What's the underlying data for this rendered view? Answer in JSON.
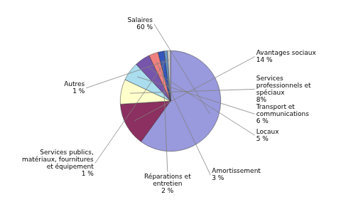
{
  "chart_data": {
    "type": "pie",
    "categories": [
      "Salaires",
      "Avantages sociaux",
      "Services\nprofessionnels et\nspéciaux",
      "Transport et\ncommunications",
      "Locaux",
      "Amortissement",
      "Réparations et\nentretien",
      "Services publics,\nmatériaux, fournitures\net équipement",
      "Autres"
    ],
    "values": [
      60,
      14,
      8,
      6,
      5,
      3,
      2,
      1,
      1
    ],
    "value_labels": [
      "60 %",
      "14 %",
      "8%",
      "6 %",
      "5 %",
      "3 %",
      "2 %",
      "1 %",
      "1 %"
    ],
    "colors": [
      "#9999dd",
      "#8b3060",
      "#ffffcc",
      "#aaddee",
      "#7755aa",
      "#f08080",
      "#3355bb",
      "#6699cc",
      "#cccccc"
    ],
    "data_labels": true
  }
}
